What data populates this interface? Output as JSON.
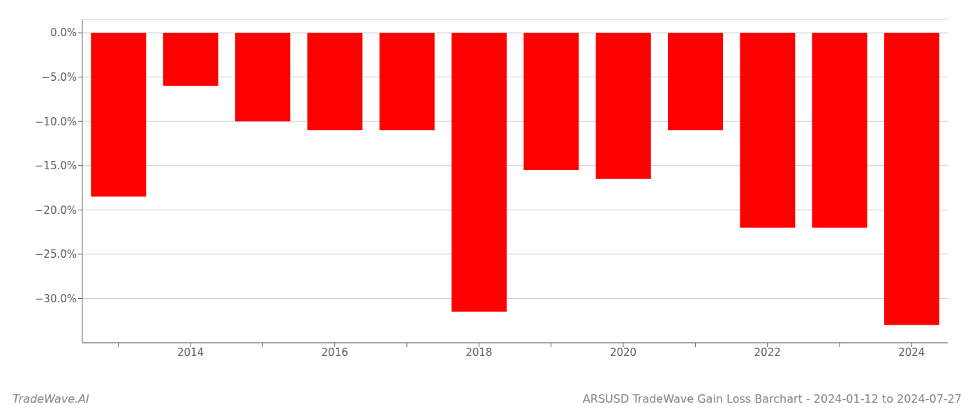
{
  "chart_data": {
    "type": "bar",
    "title": "ARSUSD TradeWave Gain Loss Barchart - 2024-01-12 to 2024-07-27",
    "annotations": [
      "TradeWave.AI"
    ],
    "categories": [
      null,
      "2014",
      null,
      "2016",
      null,
      "2018",
      null,
      "2020",
      null,
      "2022",
      null,
      "2024"
    ],
    "values": [
      -18.5,
      -6.0,
      -10.0,
      -11.0,
      -11.0,
      -31.5,
      -15.5,
      -16.5,
      -11.0,
      -22.0,
      -22.0,
      -33.0
    ],
    "color": "#ff0000",
    "ylim": [
      -35,
      1.5
    ],
    "yticks": [
      {
        "value": 0.0,
        "label": "0.0%"
      },
      {
        "value": -5.0,
        "label": "−5.0%"
      },
      {
        "value": -10.0,
        "label": "−10.0%"
      },
      {
        "value": -15.0,
        "label": "−15.0%"
      },
      {
        "value": -20.0,
        "label": "−20.0%"
      },
      {
        "value": -25.0,
        "label": "−25.0%"
      },
      {
        "value": -30.0,
        "label": "−30.0%"
      }
    ],
    "grid": true
  }
}
